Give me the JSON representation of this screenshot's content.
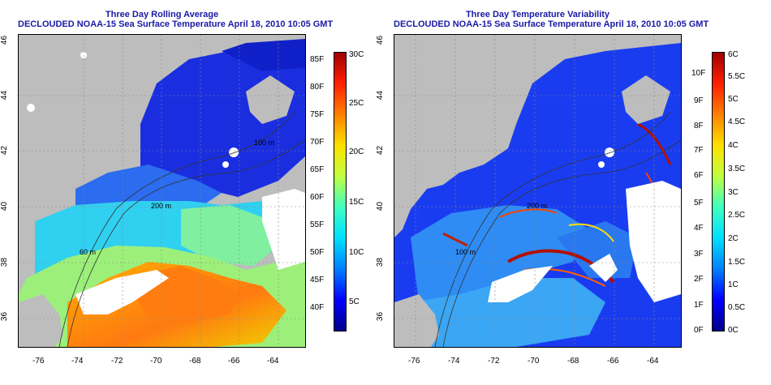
{
  "left_panel": {
    "title_line1": "Three Day Rolling Average",
    "title_line2": "DECLOUDED NOAA-15 Sea Surface Temperature April 18, 2010 10:05 GMT",
    "contour_labels": [
      "200 m",
      "100 m",
      "60 m"
    ],
    "colorbar": {
      "fahrenheit": [
        "85F",
        "80F",
        "75F",
        "70F",
        "65F",
        "60F",
        "55F",
        "50F",
        "45F",
        "40F"
      ],
      "celsius": [
        "30C",
        "25C",
        "20C",
        "15C",
        "10C",
        "5C"
      ],
      "colors": [
        "#00008b",
        "#0000ff",
        "#0080ff",
        "#00e0ff",
        "#40ffc0",
        "#c0ff40",
        "#ffe000",
        "#ff8000",
        "#ff2000",
        "#a00000"
      ]
    }
  },
  "right_panel": {
    "title_line1": "Three Day Temperature Variability",
    "title_line2": "DECLOUDED NOAA-15 Sea Surface Temperature April 18, 2010 10:05 GMT",
    "contour_labels": [
      "200 m",
      "100 m"
    ],
    "colorbar": {
      "fahrenheit": [
        "10F",
        "9F",
        "8F",
        "7F",
        "6F",
        "5F",
        "4F",
        "3F",
        "2F",
        "1F",
        "0F"
      ],
      "celsius": [
        "6C",
        "5.5C",
        "5C",
        "4.5C",
        "4C",
        "3.5C",
        "3C",
        "2.5C",
        "2C",
        "1.5C",
        "1C",
        "0.5C",
        "0C"
      ],
      "colors": [
        "#00008b",
        "#0000ff",
        "#0080ff",
        "#00e0ff",
        "#40ffc0",
        "#c0ff40",
        "#ffe000",
        "#ff8000",
        "#ff2000",
        "#a00000"
      ]
    }
  },
  "axes": {
    "lon_ticks": [
      "-76",
      "-74",
      "-72",
      "-70",
      "-68",
      "-66",
      "-64"
    ],
    "lat_ticks": [
      "46",
      "44",
      "42",
      "40",
      "38",
      "36"
    ]
  }
}
